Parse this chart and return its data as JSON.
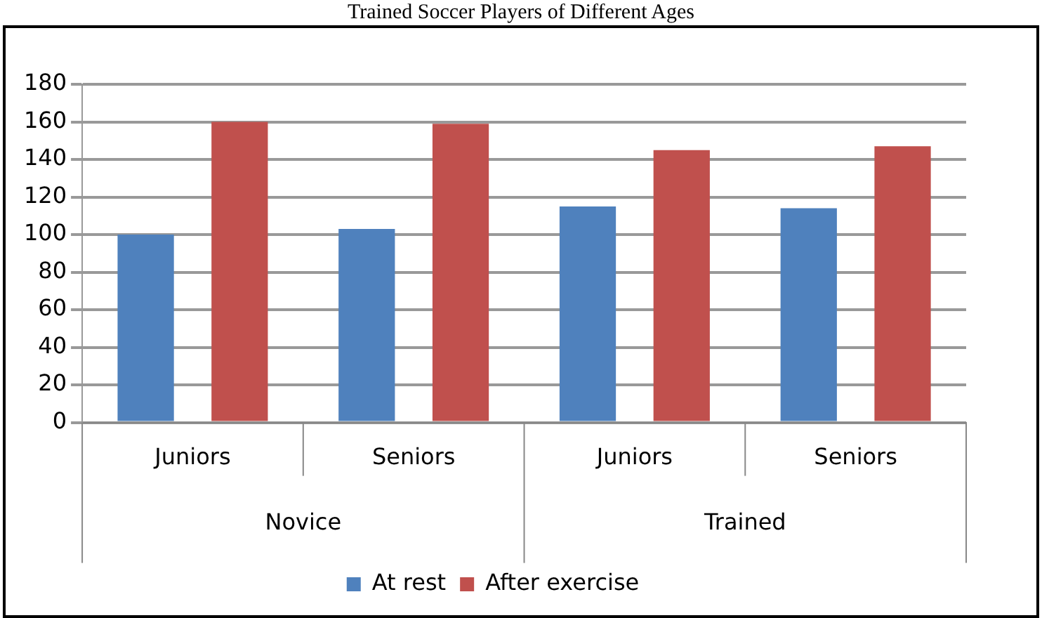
{
  "chart_data": {
    "type": "bar",
    "title": "Trained Soccer Players of Different Ages",
    "categories": [
      "Juniors",
      "Seniors",
      "Juniors",
      "Seniors"
    ],
    "series": [
      {
        "name": "At rest",
        "color": "#4f81bd",
        "values": [
          100,
          103,
          115,
          114
        ]
      },
      {
        "name": "After exercise",
        "color": "#c0504d",
        "values": [
          160,
          159,
          145,
          147
        ]
      }
    ],
    "annotations": [
      "Novice",
      "Trained"
    ],
    "ylim": [
      0,
      180
    ],
    "yticks": [
      0,
      20,
      40,
      60,
      80,
      100,
      120,
      140,
      160,
      180
    ],
    "grid": "y",
    "legend": "bottom"
  }
}
